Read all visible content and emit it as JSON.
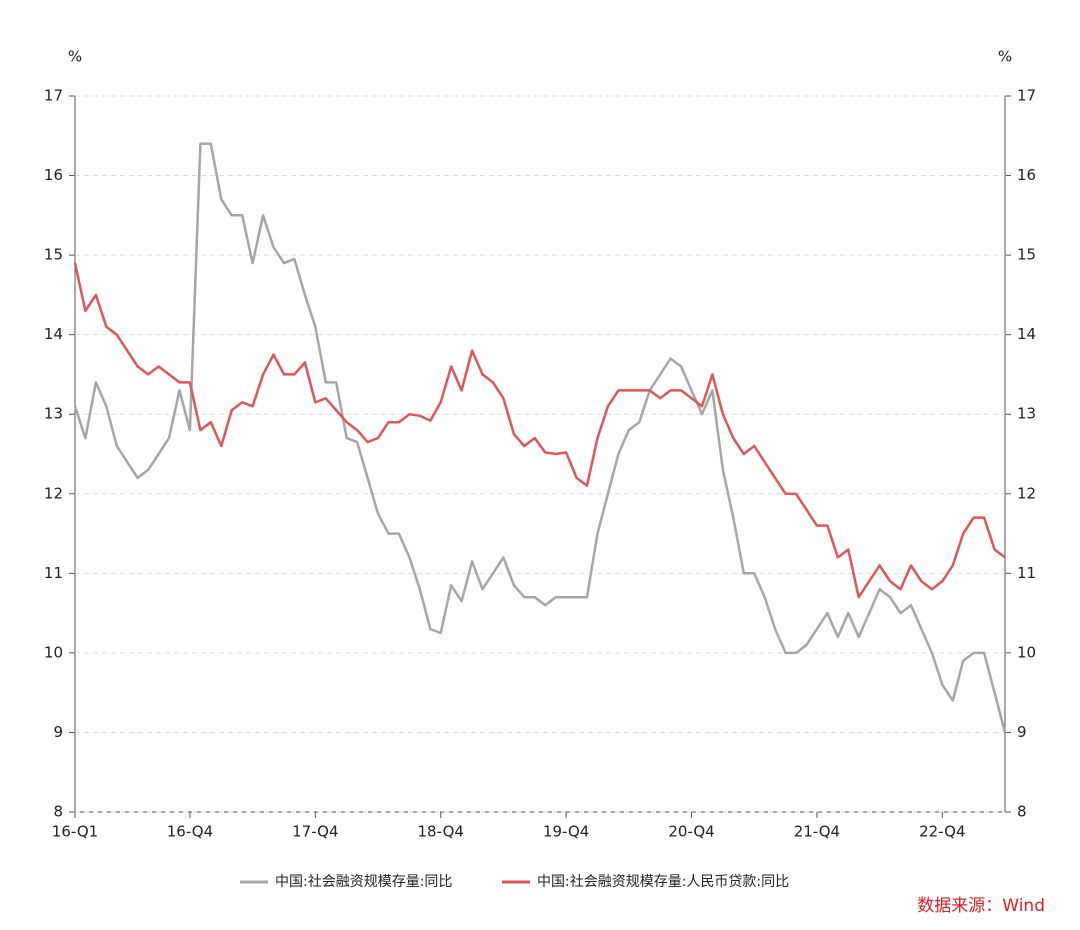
{
  "chart_data": {
    "type": "line",
    "y_unit": "%",
    "y2_unit": "%",
    "categories": [
      "16-Q1",
      null,
      null,
      null,
      null,
      null,
      null,
      null,
      null,
      null,
      null,
      "16-Q4",
      null,
      null,
      null,
      null,
      null,
      null,
      null,
      null,
      null,
      null,
      null,
      "17-Q4",
      null,
      null,
      null,
      null,
      null,
      null,
      null,
      null,
      null,
      null,
      null,
      "18-Q4",
      null,
      null,
      null,
      null,
      null,
      null,
      null,
      null,
      null,
      null,
      null,
      "19-Q4",
      null,
      null,
      null,
      null,
      null,
      null,
      null,
      null,
      null,
      null,
      null,
      "20-Q4",
      null,
      null,
      null,
      null,
      null,
      null,
      null,
      null,
      null,
      null,
      null,
      "21-Q4",
      null,
      null,
      null,
      null,
      null,
      null,
      null,
      null,
      null,
      null,
      null,
      "22-Q4",
      null,
      null,
      null,
      null,
      null,
      null
    ],
    "series": [
      {
        "name": "中国:社会融资规模存量:同比",
        "color": "#a6a6a6",
        "values": [
          13.1,
          12.7,
          13.4,
          13.1,
          12.6,
          12.4,
          12.2,
          12.3,
          12.5,
          12.7,
          13.3,
          12.8,
          16.4,
          16.4,
          15.7,
          15.5,
          15.5,
          14.9,
          15.5,
          15.1,
          14.9,
          14.95,
          14.5,
          14.1,
          13.4,
          13.4,
          12.7,
          12.65,
          12.2,
          11.75,
          11.5,
          11.5,
          11.2,
          10.8,
          10.3,
          10.25,
          10.85,
          10.65,
          11.15,
          10.8,
          11.0,
          11.2,
          10.85,
          10.7,
          10.7,
          10.6,
          10.7,
          10.7,
          10.7,
          10.7,
          11.5,
          12.0,
          12.5,
          12.8,
          12.9,
          13.3,
          13.5,
          13.7,
          13.6,
          13.3,
          13.0,
          13.3,
          12.3,
          11.7,
          11.0,
          11.0,
          10.7,
          10.3,
          10.0,
          10.0,
          10.1,
          10.3,
          10.5,
          10.2,
          10.5,
          10.2,
          10.5,
          10.8,
          10.7,
          10.5,
          10.6,
          10.3,
          10.0,
          9.6,
          9.4,
          9.9,
          10.0,
          10.0,
          9.5,
          9.0
        ]
      },
      {
        "name": "中国:社会融资规模存量:人民币贷款:同比",
        "color": "#e05656",
        "values": [
          14.9,
          14.3,
          14.5,
          14.1,
          14.0,
          13.8,
          13.6,
          13.5,
          13.6,
          13.5,
          13.4,
          13.4,
          12.8,
          12.9,
          12.6,
          13.05,
          13.15,
          13.1,
          13.5,
          13.75,
          13.5,
          13.5,
          13.65,
          13.15,
          13.2,
          13.05,
          12.9,
          12.8,
          12.65,
          12.7,
          12.9,
          12.9,
          13.0,
          12.98,
          12.92,
          13.15,
          13.6,
          13.3,
          13.8,
          13.5,
          13.4,
          13.2,
          12.75,
          12.6,
          12.7,
          12.52,
          12.5,
          12.52,
          12.2,
          12.1,
          12.7,
          13.1,
          13.3,
          13.3,
          13.3,
          13.3,
          13.2,
          13.3,
          13.3,
          13.2,
          13.1,
          13.5,
          13.0,
          12.7,
          12.5,
          12.6,
          12.4,
          12.2,
          12.0,
          12.0,
          11.8,
          11.6,
          11.6,
          11.2,
          11.3,
          10.7,
          10.9,
          11.1,
          10.9,
          10.8,
          11.1,
          10.9,
          10.8,
          10.9,
          11.1,
          11.5,
          11.7,
          11.7,
          11.3,
          11.2
        ]
      }
    ],
    "ylim": [
      8,
      17
    ],
    "yticks": [
      8,
      9,
      10,
      11,
      12,
      13,
      14,
      15,
      16,
      17
    ],
    "y2lim": [
      8,
      17
    ],
    "y2ticks": [
      8,
      9,
      10,
      11,
      12,
      13,
      14,
      15,
      16,
      17
    ],
    "grid": true,
    "source": "数据来源：Wind"
  }
}
